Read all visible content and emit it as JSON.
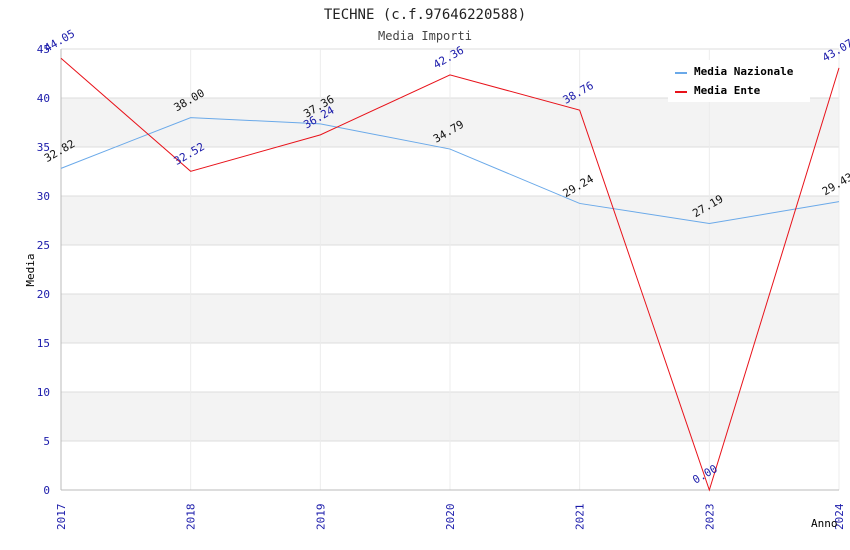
{
  "chart_data": {
    "type": "line",
    "title": "TECHNE (c.f.97646220588)",
    "subtitle": "Media Importi",
    "xlabel": "Anno",
    "ylabel": "Media",
    "categories": [
      "2017",
      "2018",
      "2019",
      "2020",
      "2021",
      "2023",
      "2024"
    ],
    "ylim": [
      0,
      45
    ],
    "yticks": [
      0,
      5,
      10,
      15,
      20,
      25,
      30,
      35,
      40,
      45
    ],
    "grid": true,
    "legend_position": "top-right",
    "series": [
      {
        "name": "Media Nazionale",
        "color": "#6aa9e9",
        "values": [
          32.82,
          38.0,
          37.36,
          34.79,
          29.24,
          27.19,
          29.43
        ],
        "labels": [
          "32.82",
          "38.00",
          "37.36",
          "34.79",
          "29.24",
          "27.19",
          "29.43"
        ]
      },
      {
        "name": "Media Ente",
        "color": "#e8121a",
        "values": [
          44.05,
          32.52,
          36.24,
          42.36,
          38.76,
          0.0,
          43.07
        ],
        "labels": [
          "44.05",
          "32.52",
          "36.24",
          "42.36",
          "38.76",
          "0.00",
          "43.07"
        ]
      }
    ]
  }
}
